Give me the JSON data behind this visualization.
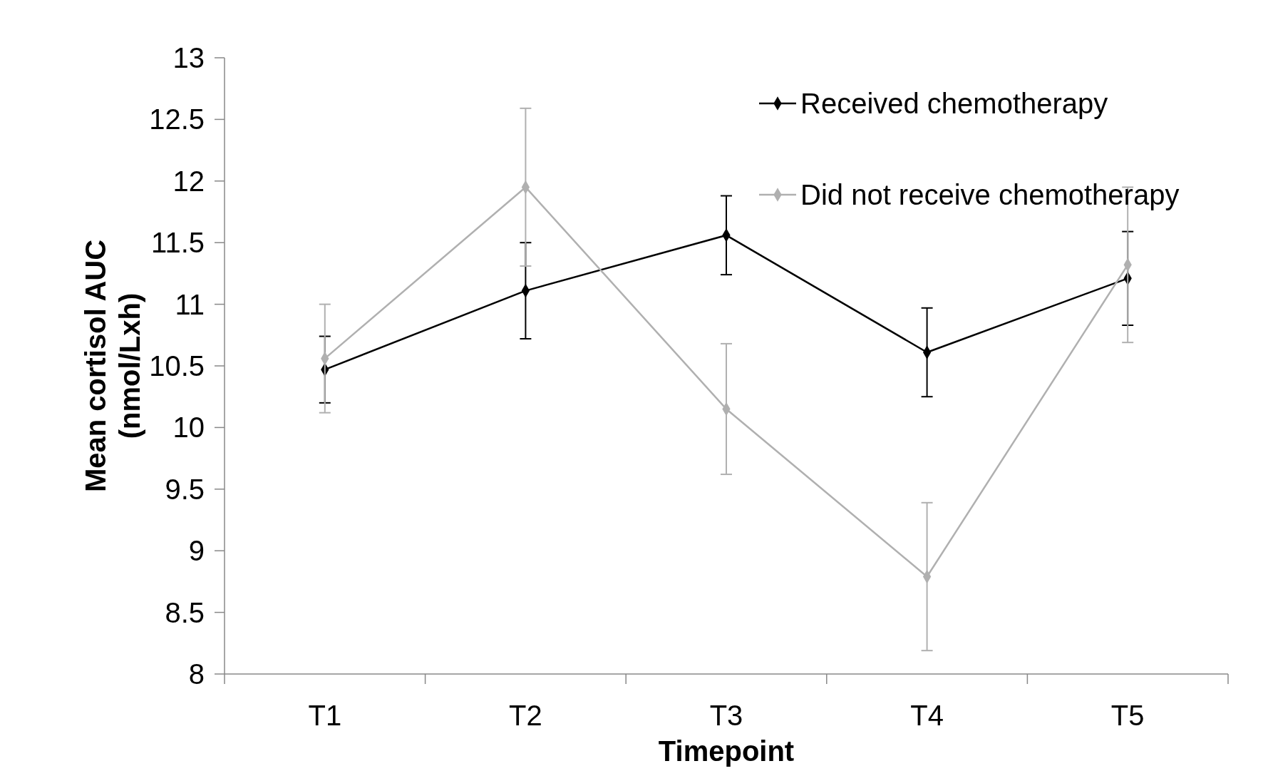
{
  "chart_data": {
    "type": "line",
    "xlabel": "Timepoint",
    "ylabel": "Mean cortisol AUC (nmol/Lxh)",
    "categories": [
      "T1",
      "T2",
      "T3",
      "T4",
      "T5"
    ],
    "series": [
      {
        "name": "Received chemotherapy",
        "color": "#000000",
        "values": [
          10.47,
          11.11,
          11.56,
          10.61,
          11.21
        ],
        "errors": [
          0.27,
          0.39,
          0.32,
          0.36,
          0.38
        ]
      },
      {
        "name": "Did not receive chemotherapy",
        "color": "#b0b0b0",
        "values": [
          10.56,
          11.95,
          10.15,
          8.79,
          11.32
        ],
        "errors": [
          0.44,
          0.64,
          0.53,
          0.6,
          0.63
        ]
      }
    ],
    "ylim": [
      8,
      13
    ],
    "yticks": [
      8,
      8.5,
      9,
      9.5,
      10,
      10.5,
      11,
      11.5,
      12,
      12.5,
      13
    ],
    "legend": "top right",
    "marker": "diamond",
    "line_style": "solid",
    "grid": false
  }
}
